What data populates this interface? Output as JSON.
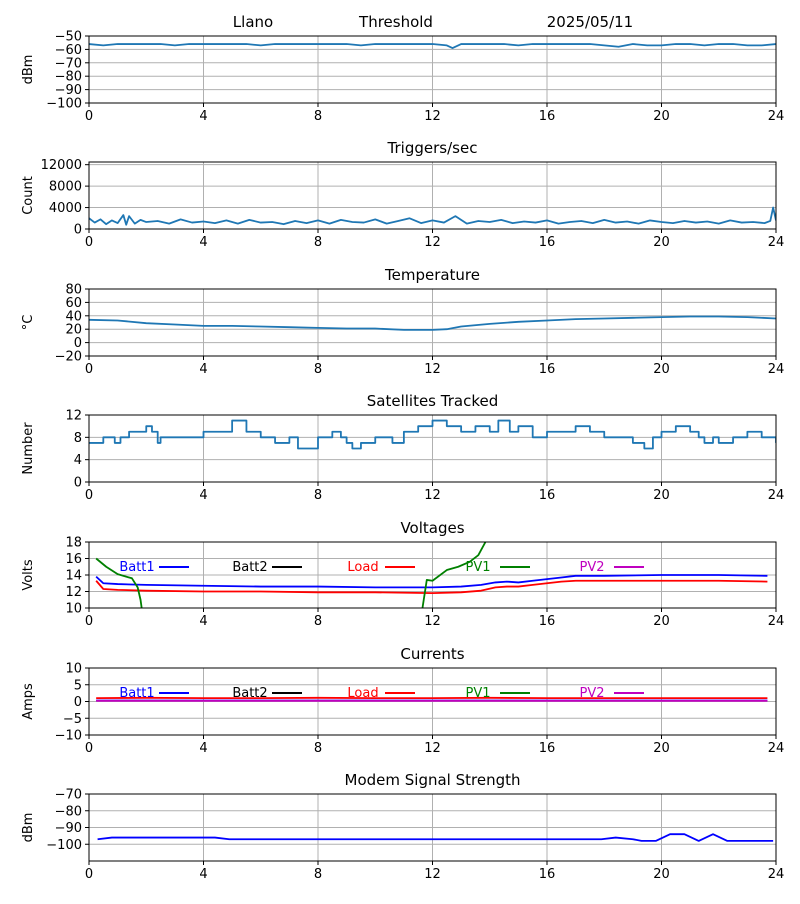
{
  "header": {
    "station": "Llano",
    "report": "Threshold",
    "date": "2025/05/11"
  },
  "colors": {
    "series_default": "#1f77b4",
    "batt1": "#0000ff",
    "batt2": "#000000",
    "load": "#ff0000",
    "pv1": "#008000",
    "pv2": "#bf00bf",
    "grid": "#b0b0b0"
  },
  "chart_data": [
    {
      "id": "threshold",
      "type": "line",
      "title": "",
      "ylabel": "dBm",
      "xlim": [
        0,
        24
      ],
      "ylim": [
        -100,
        -50
      ],
      "xticks": [
        0,
        4,
        8,
        12,
        16,
        20,
        24
      ],
      "yticks": [
        -50,
        -60,
        -70,
        -80,
        -90,
        -100
      ],
      "grid": true,
      "series": [
        {
          "color": "#1f77b4",
          "x": [
            0,
            0.5,
            1,
            1.5,
            2,
            2.5,
            3,
            3.5,
            4,
            4.5,
            5,
            5.5,
            6,
            6.5,
            7,
            7.5,
            8,
            8.5,
            9,
            9.5,
            10,
            10.5,
            11,
            11.5,
            12,
            12.5,
            12.7,
            13,
            13.5,
            14,
            14.5,
            15,
            15.5,
            16,
            16.5,
            17,
            17.5,
            18,
            18.5,
            19,
            19.5,
            20,
            20.5,
            21,
            21.5,
            22,
            22.5,
            23,
            23.5,
            24
          ],
          "y": [
            -56,
            -57,
            -56,
            -56,
            -56,
            -56,
            -57,
            -56,
            -56,
            -56,
            -56,
            -56,
            -57,
            -56,
            -56,
            -56,
            -56,
            -56,
            -56,
            -57,
            -56,
            -56,
            -56,
            -56,
            -56,
            -57,
            -59,
            -56,
            -56,
            -56,
            -56,
            -57,
            -56,
            -56,
            -56,
            -56,
            -56,
            -57,
            -58,
            -56,
            -57,
            -57,
            -56,
            -56,
            -57,
            -56,
            -56,
            -57,
            -57,
            -56
          ]
        }
      ]
    },
    {
      "id": "triggers",
      "type": "line",
      "title": "Triggers/sec",
      "ylabel": "Count",
      "xlim": [
        0,
        24
      ],
      "ylim": [
        0,
        12500
      ],
      "xticks": [
        0,
        4,
        8,
        12,
        16,
        20,
        24
      ],
      "yticks": [
        0,
        4000,
        8000,
        12000
      ],
      "grid": true,
      "series": [
        {
          "color": "#1f77b4",
          "x": [
            0,
            0.2,
            0.4,
            0.6,
            0.8,
            1.0,
            1.2,
            1.3,
            1.4,
            1.6,
            1.8,
            2.0,
            2.4,
            2.8,
            3.2,
            3.6,
            4.0,
            4.4,
            4.8,
            5.2,
            5.6,
            6.0,
            6.4,
            6.8,
            7.2,
            7.6,
            8.0,
            8.4,
            8.8,
            9.2,
            9.6,
            10.0,
            10.4,
            10.8,
            11.2,
            11.6,
            12.0,
            12.4,
            12.8,
            13.2,
            13.6,
            14.0,
            14.4,
            14.8,
            15.2,
            15.6,
            16.0,
            16.4,
            16.8,
            17.2,
            17.6,
            18.0,
            18.4,
            18.8,
            19.2,
            19.6,
            20.0,
            20.4,
            20.8,
            21.2,
            21.6,
            22.0,
            22.4,
            22.8,
            23.2,
            23.6,
            23.8,
            23.9,
            24.0
          ],
          "y": [
            2000,
            1200,
            1800,
            900,
            1600,
            1100,
            2600,
            800,
            2400,
            1000,
            1700,
            1300,
            1500,
            1000,
            1800,
            1200,
            1400,
            1100,
            1600,
            1000,
            1700,
            1200,
            1300,
            900,
            1500,
            1100,
            1600,
            1000,
            1700,
            1300,
            1200,
            1800,
            1000,
            1500,
            2000,
            1100,
            1600,
            1200,
            2400,
            1000,
            1500,
            1300,
            1700,
            1100,
            1400,
            1200,
            1600,
            1000,
            1300,
            1500,
            1100,
            1700,
            1200,
            1400,
            1000,
            1600,
            1300,
            1100,
            1500,
            1200,
            1400,
            1000,
            1600,
            1200,
            1300,
            1100,
            1500,
            4000,
            1600
          ]
        }
      ]
    },
    {
      "id": "temperature",
      "type": "line",
      "title": "Temperature",
      "ylabel": "°C",
      "xlim": [
        0,
        24
      ],
      "ylim": [
        -20,
        80
      ],
      "xticks": [
        0,
        4,
        8,
        12,
        16,
        20,
        24
      ],
      "yticks": [
        -20,
        0,
        20,
        40,
        60,
        80
      ],
      "grid": true,
      "series": [
        {
          "color": "#1f77b4",
          "x": [
            0,
            1,
            2,
            3,
            4,
            5,
            6,
            7,
            8,
            9,
            10,
            11,
            12,
            12.5,
            13,
            14,
            15,
            16,
            17,
            18,
            19,
            20,
            21,
            22,
            23,
            24
          ],
          "y": [
            34,
            33,
            29,
            27,
            25,
            25,
            24,
            23,
            22,
            21,
            21,
            19,
            19,
            20,
            24,
            28,
            31,
            33,
            35,
            36,
            37,
            38,
            39,
            39,
            38,
            36
          ]
        }
      ]
    },
    {
      "id": "satellites",
      "type": "line",
      "title": "Satellites Tracked",
      "ylabel": "Number",
      "xlim": [
        0,
        24
      ],
      "ylim": [
        0,
        12
      ],
      "xticks": [
        0,
        4,
        8,
        12,
        16,
        20,
        24
      ],
      "yticks": [
        0,
        4,
        8,
        12
      ],
      "grid": true,
      "series": [
        {
          "color": "#1f77b4",
          "step": true,
          "x": [
            0,
            0.5,
            0.9,
            1.1,
            1.4,
            2.0,
            2.2,
            2.4,
            2.5,
            3.5,
            4.0,
            4.6,
            5.0,
            5.5,
            6.0,
            6.5,
            7.0,
            7.3,
            8.0,
            8.5,
            8.8,
            9.0,
            9.2,
            9.5,
            10.0,
            10.6,
            11.0,
            11.5,
            12.0,
            12.5,
            13.0,
            13.5,
            14.0,
            14.3,
            14.7,
            15.0,
            15.5,
            16.0,
            16.5,
            17.0,
            17.5,
            18.0,
            18.5,
            19.0,
            19.4,
            19.7,
            20.0,
            20.5,
            21.0,
            21.3,
            21.5,
            21.8,
            22.0,
            22.5,
            23.0,
            23.5,
            24.0
          ],
          "y": [
            7,
            8,
            7,
            8,
            9,
            10,
            9,
            7,
            8,
            8,
            9,
            9,
            11,
            9,
            8,
            7,
            8,
            6,
            8,
            9,
            8,
            7,
            6,
            7,
            8,
            7,
            9,
            10,
            11,
            10,
            9,
            10,
            9,
            11,
            9,
            10,
            8,
            9,
            9,
            10,
            9,
            8,
            8,
            7,
            6,
            8,
            9,
            10,
            9,
            8,
            7,
            8,
            7,
            8,
            9,
            8,
            7
          ]
        }
      ]
    },
    {
      "id": "voltages",
      "type": "line",
      "title": "Voltages",
      "ylabel": "Volts",
      "xlim": [
        0,
        24
      ],
      "ylim": [
        10,
        18
      ],
      "xticks": [
        0,
        4,
        8,
        12,
        16,
        20,
        24
      ],
      "yticks": [
        10,
        12,
        14,
        16,
        18
      ],
      "grid": true,
      "legend_position": "top",
      "series": [
        {
          "name": "Batt1",
          "color": "#0000ff",
          "x": [
            0.25,
            0.5,
            1,
            2,
            4,
            6,
            8,
            10,
            12,
            13,
            13.7,
            14.2,
            14.6,
            15,
            15.5,
            16,
            16.5,
            17,
            18,
            20,
            22,
            23.7
          ],
          "y": [
            13.8,
            13.0,
            12.9,
            12.8,
            12.7,
            12.6,
            12.6,
            12.5,
            12.5,
            12.6,
            12.8,
            13.1,
            13.2,
            13.1,
            13.3,
            13.5,
            13.7,
            13.9,
            13.9,
            14.0,
            14.0,
            13.9
          ]
        },
        {
          "name": "Batt2",
          "color": "#000000",
          "x": [],
          "y": []
        },
        {
          "name": "Load",
          "color": "#ff0000",
          "x": [
            0.25,
            0.5,
            1,
            2,
            4,
            6,
            8,
            10,
            12,
            13,
            13.7,
            14.2,
            14.6,
            15,
            15.5,
            16,
            16.5,
            17,
            18,
            20,
            22,
            23.7
          ],
          "y": [
            13.3,
            12.3,
            12.2,
            12.1,
            12.0,
            12.0,
            11.9,
            11.9,
            11.8,
            11.9,
            12.1,
            12.5,
            12.6,
            12.6,
            12.8,
            13.0,
            13.2,
            13.3,
            13.3,
            13.3,
            13.3,
            13.2
          ]
        },
        {
          "name": "PV1",
          "color": "#008000",
          "x": [
            0.25,
            0.6,
            1.0,
            1.5,
            1.7,
            1.8,
            1.84
          ],
          "y": [
            16.0,
            15.0,
            14.1,
            13.6,
            12.5,
            11.0,
            10.0
          ],
          "x2": [
            11.65,
            11.8,
            12.0,
            12.5,
            12.9,
            13.3,
            13.6,
            13.85
          ],
          "y2": [
            10.0,
            13.4,
            13.3,
            14.6,
            15.0,
            15.6,
            16.4,
            18.0
          ]
        },
        {
          "name": "PV2",
          "color": "#bf00bf",
          "x": [],
          "y": []
        }
      ]
    },
    {
      "id": "currents",
      "type": "line",
      "title": "Currents",
      "ylabel": "Amps",
      "xlim": [
        0,
        24
      ],
      "ylim": [
        -10,
        10
      ],
      "xticks": [
        0,
        4,
        8,
        12,
        16,
        20,
        24
      ],
      "yticks": [
        -10,
        -5,
        0,
        5,
        10
      ],
      "grid": true,
      "legend_position": "top",
      "series": [
        {
          "name": "Batt1",
          "color": "#0000ff",
          "x": [
            0.25,
            23.7
          ],
          "y": [
            0.3,
            0.3
          ]
        },
        {
          "name": "Batt2",
          "color": "#000000",
          "x": [],
          "y": []
        },
        {
          "name": "Load",
          "color": "#ff0000",
          "x": [
            0.25,
            2,
            4,
            6,
            8,
            10,
            12,
            14,
            16,
            18,
            20,
            22,
            23.7
          ],
          "y": [
            1.0,
            1.1,
            1.0,
            1.0,
            1.1,
            1.0,
            1.0,
            1.1,
            1.0,
            1.0,
            1.0,
            1.0,
            1.0
          ]
        },
        {
          "name": "PV1",
          "color": "#008000",
          "x": [],
          "y": []
        },
        {
          "name": "PV2",
          "color": "#bf00bf",
          "x": [
            0.25,
            23.7
          ],
          "y": [
            0.2,
            0.2
          ]
        }
      ]
    },
    {
      "id": "modem",
      "type": "line",
      "title": "Modem Signal Strength",
      "ylabel": "dBm",
      "xlim": [
        0,
        24
      ],
      "ylim": [
        -110,
        -70
      ],
      "xticks": [
        0,
        4,
        8,
        12,
        16,
        20,
        24
      ],
      "yticks": [
        -70,
        -80,
        -90,
        -100
      ],
      "grid": true,
      "series": [
        {
          "color": "#0000ff",
          "x": [
            0.3,
            0.8,
            1.5,
            3,
            4.4,
            4.9,
            6,
            8,
            10,
            12,
            14,
            16,
            17.9,
            18.4,
            19,
            19.3,
            19.8,
            20.3,
            20.8,
            21.3,
            21.8,
            22.3,
            23,
            23.9
          ],
          "y": [
            -97,
            -96,
            -96,
            -96,
            -96,
            -97,
            -97,
            -97,
            -97,
            -97,
            -97,
            -97,
            -97,
            -96,
            -97,
            -98,
            -98,
            -94,
            -94,
            -98,
            -94,
            -98,
            -98,
            -98
          ]
        }
      ]
    }
  ]
}
